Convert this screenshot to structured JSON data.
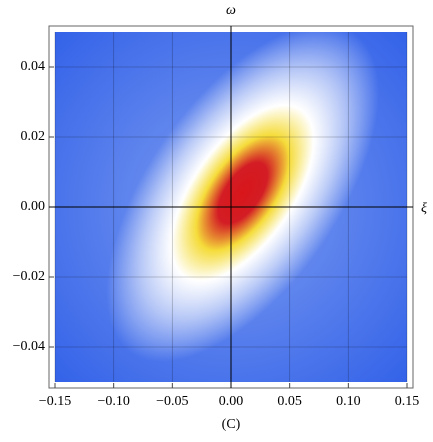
{
  "chart_data": {
    "type": "density",
    "x_label": "ξ",
    "y_label": "ω",
    "caption": "(C)",
    "xlim": [
      -0.15,
      0.15
    ],
    "ylim": [
      -0.05,
      0.05
    ],
    "xticks": [
      {
        "value": -0.15,
        "label": "−0.15"
      },
      {
        "value": -0.1,
        "label": "−0.10"
      },
      {
        "value": -0.05,
        "label": "−0.05"
      },
      {
        "value": 0,
        "label": "0.00"
      },
      {
        "value": 0.05,
        "label": "0.05"
      },
      {
        "value": 0.1,
        "label": "0.10"
      },
      {
        "value": 0.15,
        "label": "0.15"
      }
    ],
    "yticks": [
      {
        "value": -0.04,
        "label": "−0.04"
      },
      {
        "value": -0.02,
        "label": "−0.02"
      },
      {
        "value": 0,
        "label": "0.00"
      },
      {
        "value": 0.02,
        "label": "0.02"
      },
      {
        "value": 0.04,
        "label": "0.04"
      }
    ],
    "peak": {
      "x": 0.01,
      "y": 0.004
    },
    "colors": [
      "#d8161a",
      "#f5dc3a",
      "#ffffff",
      "#2f5fe8"
    ],
    "grid": true
  }
}
